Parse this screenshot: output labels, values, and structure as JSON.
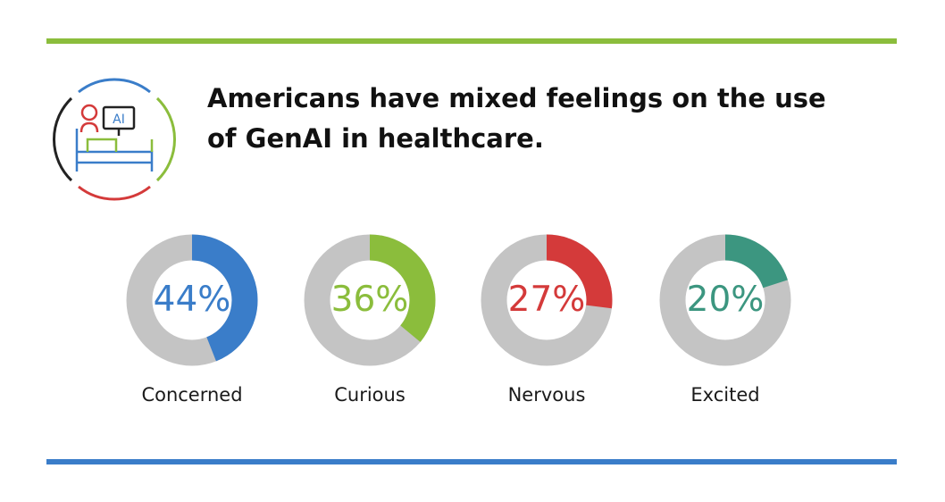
{
  "colors": {
    "top_rule": "#8bbd3c",
    "bottom_rule": "#3a7dc9",
    "track": "#c4c4c4"
  },
  "logo": {
    "icon": "ai-hospital-bed-icon",
    "text": "AI"
  },
  "chart_data": {
    "type": "pie",
    "title": "Americans have mixed feelings on the use of GenAI in healthcare.",
    "series": [
      {
        "values": [
          44,
          36,
          27,
          20
        ],
        "labels": [
          "44%",
          "36%",
          "27%",
          "20%"
        ]
      }
    ],
    "categories": [
      "Concerned",
      "Curious",
      "Nervous",
      "Excited"
    ],
    "colors": [
      "#3a7dc9",
      "#8bbd3c",
      "#d43a3a",
      "#3c9680"
    ],
    "unit": "%",
    "max": 100
  }
}
